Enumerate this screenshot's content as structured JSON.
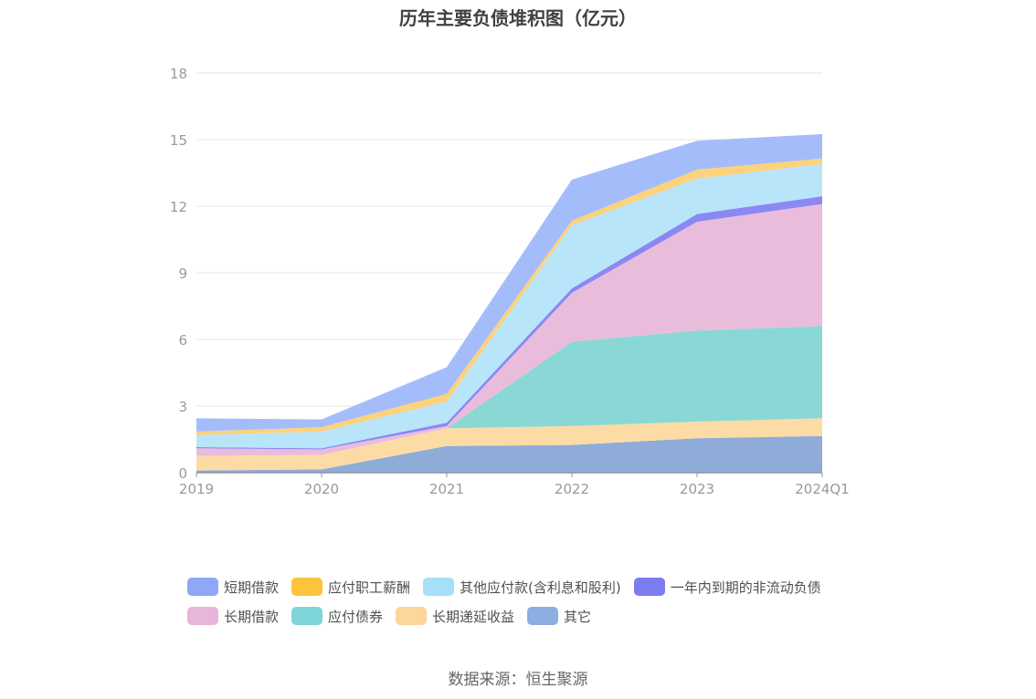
{
  "chart_data": {
    "type": "area",
    "stacked": true,
    "title": "历年主要负债堆积图（亿元）",
    "categories": [
      "2019",
      "2020",
      "2021",
      "2022",
      "2023",
      "2024Q1"
    ],
    "ylim": [
      0,
      18
    ],
    "yticks": [
      "0",
      "3",
      "6",
      "9",
      "12",
      "15",
      "18"
    ],
    "grid": true,
    "legend_position": "bottom",
    "series": [
      {
        "name": "其它",
        "color": "#8fabd8",
        "values": [
          0.1,
          0.15,
          1.2,
          1.25,
          1.55,
          1.65
        ]
      },
      {
        "name": "长期递延收益",
        "color": "#fddba4",
        "values": [
          0.65,
          0.65,
          0.8,
          0.85,
          0.75,
          0.8
        ]
      },
      {
        "name": "应付债券",
        "color": "#8ad8d6",
        "values": [
          0,
          0,
          0,
          3.8,
          4.1,
          4.15
        ]
      },
      {
        "name": "长期借款",
        "color": "#eabcdc",
        "values": [
          0.35,
          0.25,
          0.1,
          2.2,
          4.9,
          5.5
        ]
      },
      {
        "name": "一年内到期的非流动负债",
        "color": "#8b88f2",
        "values": [
          0.05,
          0.05,
          0.15,
          0.2,
          0.35,
          0.35
        ]
      },
      {
        "name": "其他应付款(含利息和股利)",
        "color": "#b8e5f9",
        "values": [
          0.55,
          0.75,
          0.95,
          2.85,
          1.6,
          1.45
        ]
      },
      {
        "name": "应付职工薪酬",
        "color": "#fdd27a",
        "values": [
          0.15,
          0.2,
          0.35,
          0.2,
          0.4,
          0.25
        ]
      },
      {
        "name": "短期借款",
        "color": "#a4bdfa",
        "values": [
          0.6,
          0.35,
          1.2,
          1.85,
          1.3,
          1.1
        ]
      }
    ]
  },
  "legend": {
    "row1": [
      "短期借款",
      "应付职工薪酬",
      "其他应付款(含利息和股利)",
      "一年内到期的非流动负债"
    ],
    "row2": [
      "长期借款",
      "应付债券",
      "长期递延收益",
      "其它"
    ]
  },
  "source": "数据来源：恒生聚源"
}
